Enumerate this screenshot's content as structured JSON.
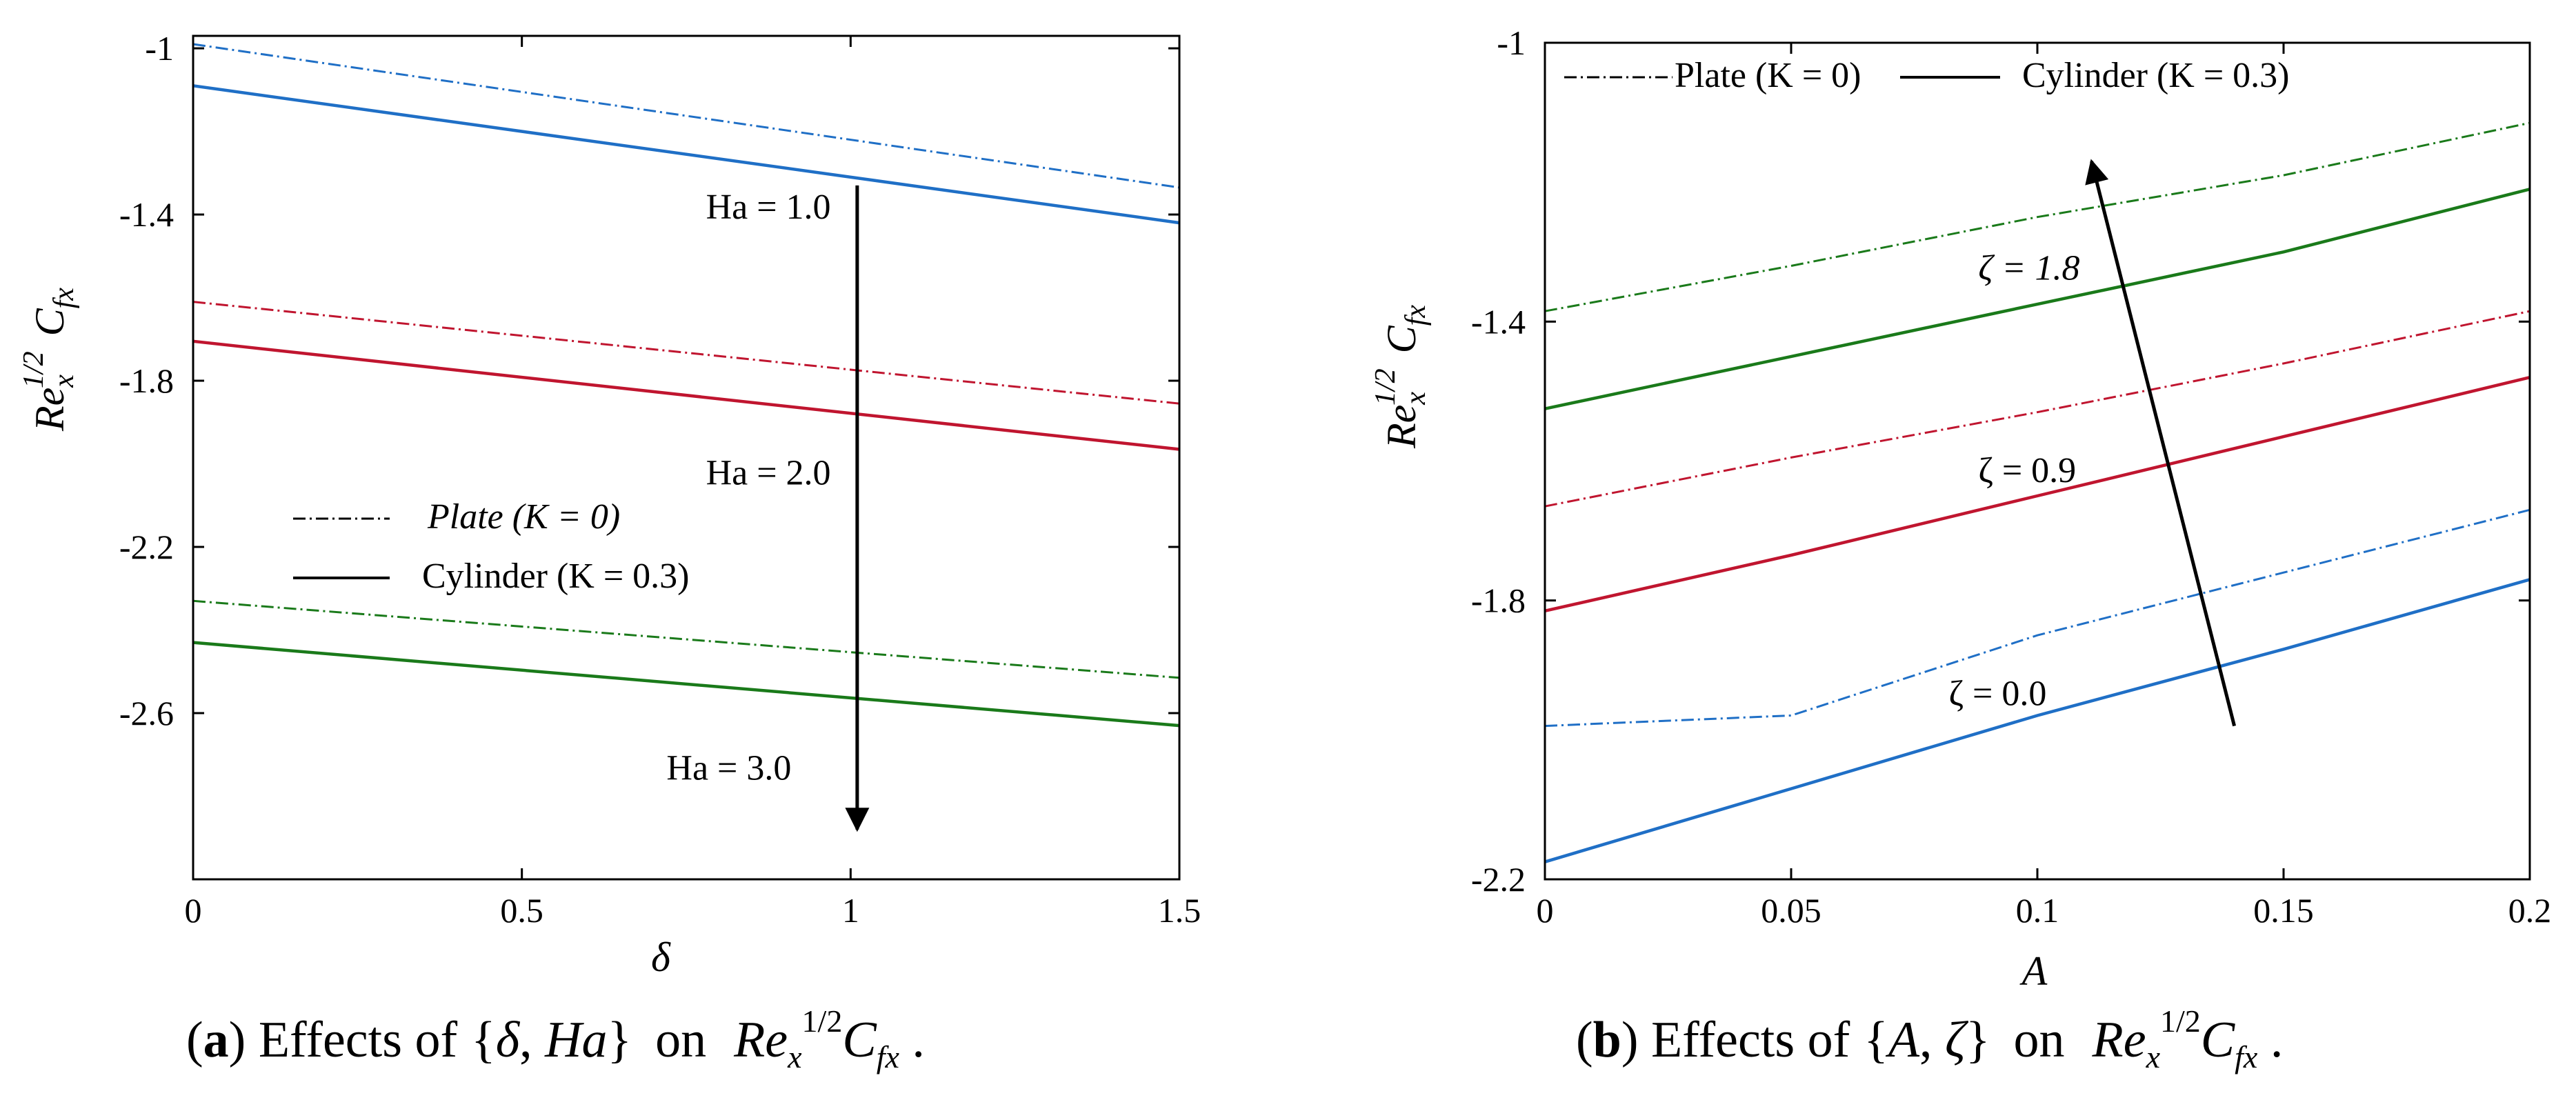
{
  "chart_data": [
    {
      "type": "line",
      "panel": "a",
      "xlabel": "δ",
      "ylabel": {
        "base": "Re",
        "sub": "x",
        "sup": "1/2",
        "base2": "C",
        "sub2": "fx"
      },
      "xlim": [
        0,
        1.5
      ],
      "ylim": [
        -3.0,
        -0.97
      ],
      "xticks": [
        0,
        0.5,
        1,
        1.5
      ],
      "xtick_labels": [
        "0",
        "0.5",
        "1",
        "1.5"
      ],
      "yticks": [
        -1.0,
        -1.4,
        -1.8,
        -2.2,
        -2.6
      ],
      "ytick_labels": [
        "-1",
        "-1.4",
        "-1.8",
        "-2.2",
        "-2.6"
      ],
      "grid": false,
      "series": [
        {
          "name": "Plate (K = 0), Ha = 1.0",
          "group": "Ha = 1.0",
          "style": "dashdot",
          "color": "#1f6fc6",
          "x": [
            0,
            1.5
          ],
          "y": [
            -0.99,
            -1.335
          ]
        },
        {
          "name": "Cylinder (K = 0.3), Ha = 1.0",
          "group": "Ha = 1.0",
          "style": "solid",
          "color": "#1f6fc6",
          "x": [
            0,
            1.5
          ],
          "y": [
            -1.09,
            -1.42
          ]
        },
        {
          "name": "Plate (K = 0), Ha = 2.0",
          "group": "Ha = 2.0",
          "style": "dashdot",
          "color": "#c0152f",
          "x": [
            0,
            1.5
          ],
          "y": [
            -1.61,
            -1.855
          ]
        },
        {
          "name": "Cylinder (K = 0.3), Ha = 2.0",
          "group": "Ha = 2.0",
          "style": "solid",
          "color": "#c0152f",
          "x": [
            0,
            1.5
          ],
          "y": [
            -1.705,
            -1.965
          ]
        },
        {
          "name": "Plate (K = 0), Ha = 3.0",
          "group": "Ha = 3.0",
          "style": "dashdot",
          "color": "#1a7a1a",
          "x": [
            0,
            1.5
          ],
          "y": [
            -2.33,
            -2.515
          ]
        },
        {
          "name": "Cylinder (K = 0.3), Ha = 3.0",
          "group": "Ha = 3.0",
          "style": "solid",
          "color": "#1a7a1a",
          "x": [
            0,
            1.5
          ],
          "y": [
            -2.43,
            -2.63
          ]
        }
      ],
      "annotations": [
        {
          "text": "Ha = 1.0",
          "x": 0.78,
          "y": -1.41
        },
        {
          "text": "Ha = 2.0",
          "x": 0.78,
          "y": -2.05
        },
        {
          "text": "Ha = 3.0",
          "x": 0.72,
          "y": -2.76
        }
      ],
      "arrow": {
        "from": [
          1.01,
          -1.33
        ],
        "to": [
          1.01,
          -2.88
        ]
      },
      "legend": {
        "placement": "lower-left",
        "entries": [
          {
            "label": "Plate (K = 0)",
            "style": "dashdot",
            "italic": true
          },
          {
            "label": "Cylinder (K = 0.3)",
            "style": "solid",
            "italic": false
          }
        ]
      },
      "caption": {
        "label": "a",
        "text": "Effects of",
        "set_a": "δ",
        "set_b": "Ha",
        "on": "on"
      }
    },
    {
      "type": "line",
      "panel": "b",
      "xlabel": "A",
      "ylabel": {
        "base": "Re",
        "sub": "x",
        "sup": "1/2",
        "base2": "C",
        "sub2": "fx"
      },
      "xlim": [
        0,
        0.2
      ],
      "ylim": [
        -2.2,
        -1.0
      ],
      "xticks": [
        0,
        0.05,
        0.1,
        0.15,
        0.2
      ],
      "xtick_labels": [
        "0",
        "0.05",
        "0.1",
        "0.15",
        "0.2"
      ],
      "yticks": [
        -1.0,
        -1.4,
        -1.8,
        -2.2
      ],
      "ytick_labels": [
        "-1",
        "-1.4",
        "-1.8",
        "-2.2"
      ],
      "grid": false,
      "series": [
        {
          "name": "Plate (K = 0), ζ = 1.8",
          "group": "ζ = 1.8",
          "style": "dashdot",
          "color": "#1a7a1a",
          "x": [
            0,
            0.05,
            0.1,
            0.15,
            0.2
          ],
          "y": [
            -1.385,
            -1.32,
            -1.25,
            -1.19,
            -1.115
          ]
        },
        {
          "name": "Cylinder (K = 0.3), ζ = 1.8",
          "group": "ζ = 1.8",
          "style": "solid",
          "color": "#1a7a1a",
          "x": [
            0,
            0.05,
            0.1,
            0.15,
            0.2
          ],
          "y": [
            -1.525,
            -1.45,
            -1.375,
            -1.3,
            -1.21
          ]
        },
        {
          "name": "Plate (K = 0), ζ = 0.9",
          "group": "ζ = 0.9",
          "style": "dashdot",
          "color": "#c0152f",
          "x": [
            0,
            0.05,
            0.1,
            0.15,
            0.2
          ],
          "y": [
            -1.665,
            -1.595,
            -1.53,
            -1.46,
            -1.385
          ]
        },
        {
          "name": "Cylinder (K = 0.3), ζ = 0.9",
          "group": "ζ = 0.9",
          "style": "solid",
          "color": "#c0152f",
          "x": [
            0,
            0.05,
            0.1,
            0.15,
            0.2
          ],
          "y": [
            -1.815,
            -1.735,
            -1.65,
            -1.565,
            -1.48
          ]
        },
        {
          "name": "Plate (K = 0), ζ = 0.0",
          "group": "ζ = 0.0",
          "style": "dashdot",
          "color": "#1f6fc6",
          "x": [
            0,
            0.05,
            0.1,
            0.15,
            0.2
          ],
          "y": [
            -1.98,
            -1.965,
            -1.85,
            -1.76,
            -1.67
          ]
        },
        {
          "name": "Cylinder (K = 0.3), ζ = 0.0",
          "group": "ζ = 0.0",
          "style": "solid",
          "color": "#1f6fc6",
          "x": [
            0,
            0.05,
            0.1,
            0.15,
            0.2
          ],
          "y": [
            -2.175,
            -2.07,
            -1.965,
            -1.87,
            -1.77
          ]
        }
      ],
      "annotations": [
        {
          "text": "ζ = 1.8",
          "x": 0.088,
          "y": -1.34,
          "italic": true
        },
        {
          "text": "ζ = 0.9",
          "x": 0.088,
          "y": -1.63,
          "italic": false
        },
        {
          "text": "ζ = 0.0",
          "x": 0.082,
          "y": -1.95,
          "italic": false
        }
      ],
      "arrow": {
        "from": [
          0.14,
          -1.98
        ],
        "to": [
          0.111,
          -1.17
        ]
      },
      "legend": {
        "placement": "top-left",
        "entries": [
          {
            "label": "Plate (K = 0)",
            "style": "dashdot",
            "italic": false
          },
          {
            "label": "Cylinder (K = 0.3)",
            "style": "solid",
            "italic": false
          }
        ]
      },
      "caption": {
        "label": "b",
        "text": "Effects of",
        "set_a": "A",
        "set_b": "ζ",
        "on": "on"
      }
    }
  ]
}
